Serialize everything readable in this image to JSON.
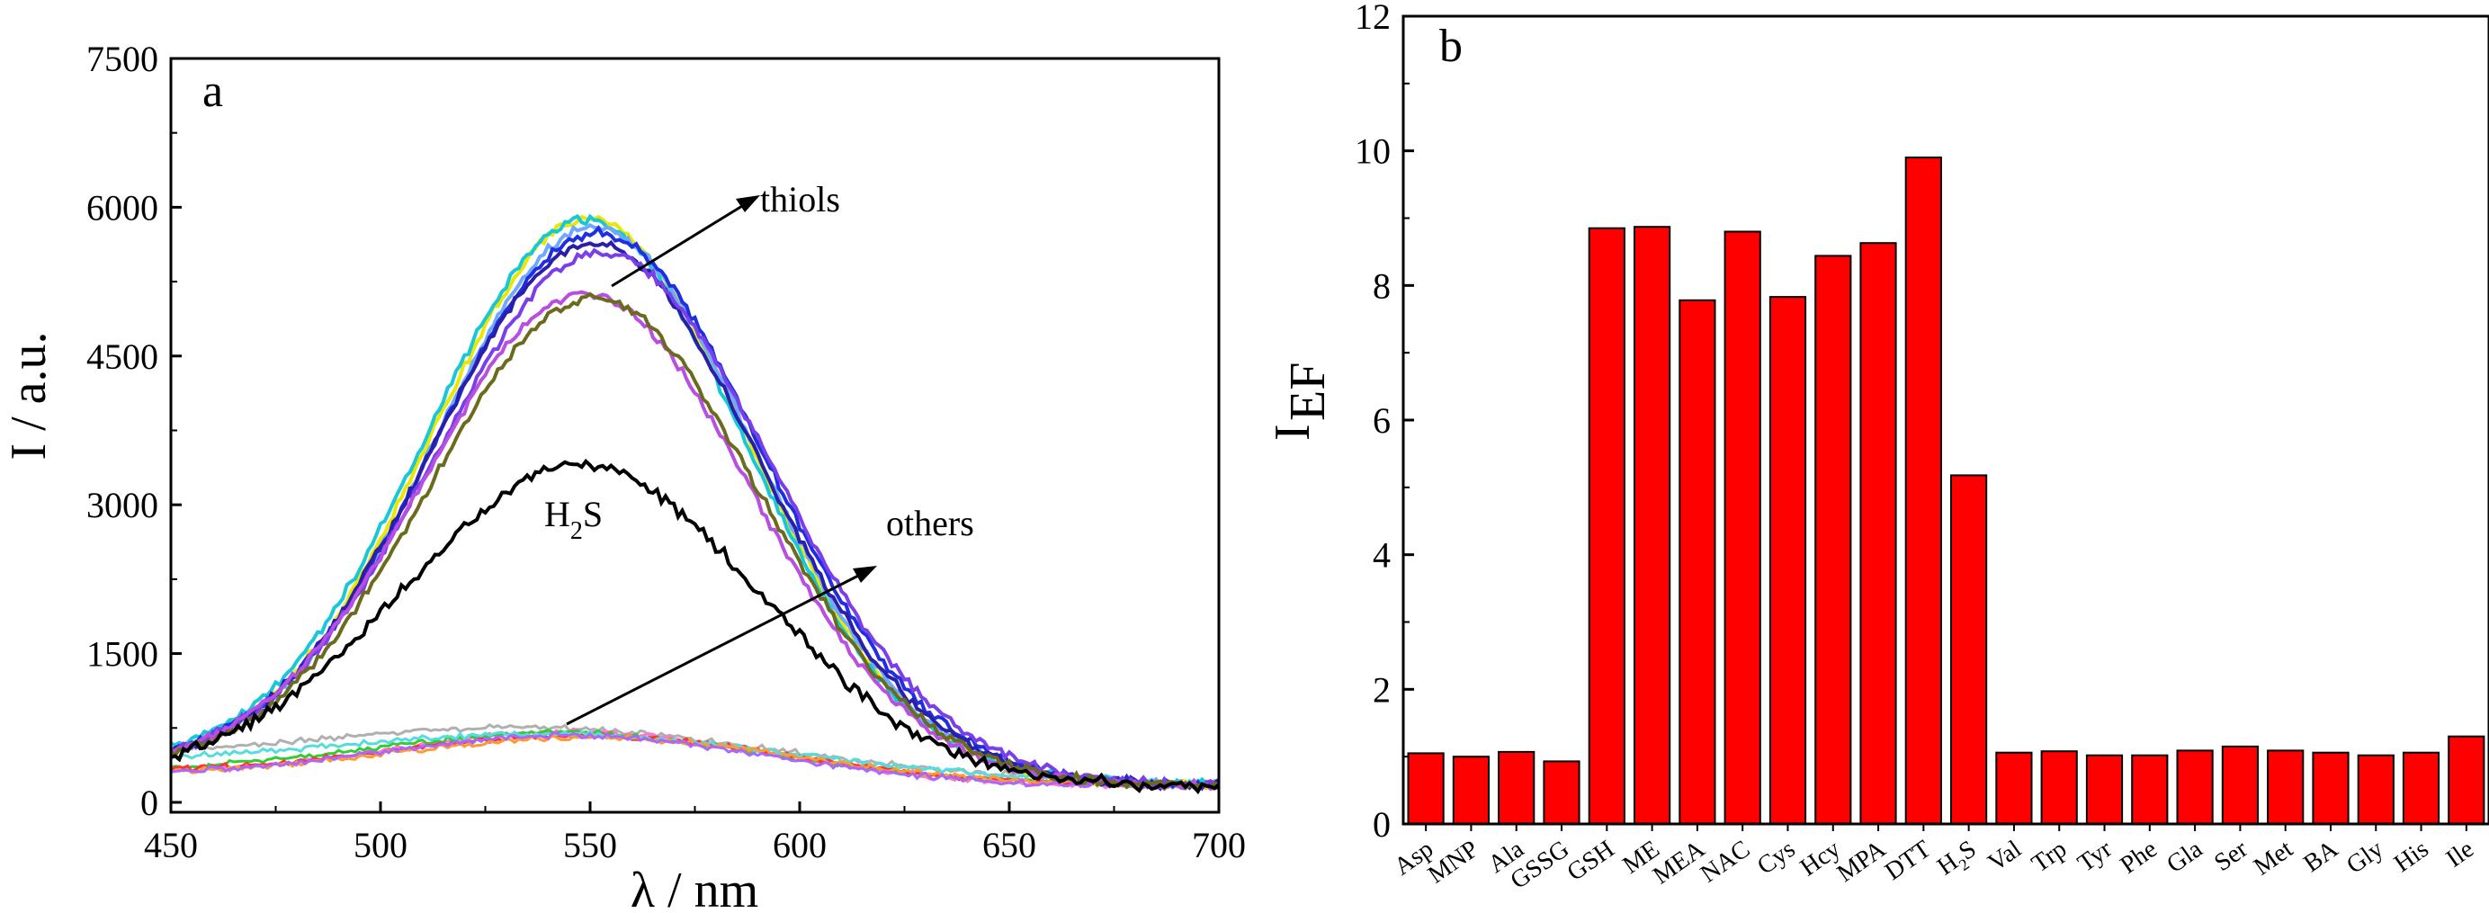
{
  "chart_data": [
    {
      "type": "line",
      "panel_label": "a",
      "xlabel": "λ / nm",
      "ylabel": "I / a.u.",
      "xlim": [
        450,
        700
      ],
      "ylim": [
        -100,
        7500
      ],
      "x_ticks": [
        450,
        500,
        550,
        600,
        650,
        700
      ],
      "y_ticks": [
        0,
        1500,
        3000,
        4500,
        6000,
        7500
      ],
      "annotations": {
        "thiols": "thiols",
        "others": "others",
        "h2s_main": "H",
        "h2s_sub": "2",
        "h2s_end": "S"
      },
      "series": [
        {
          "name": "thiol-yellow",
          "color": "#e8e800",
          "amp": 5650,
          "center": 550,
          "width": 38,
          "base": 200
        },
        {
          "name": "thiol-cyan",
          "color": "#19c8d8",
          "amp": 5600,
          "center": 549,
          "width": 38,
          "base": 260
        },
        {
          "name": "thiol-lightblue",
          "color": "#6fa8ff",
          "amp": 5550,
          "center": 551,
          "width": 38,
          "base": 230
        },
        {
          "name": "thiol-blue",
          "color": "#1f2fe0",
          "amp": 5500,
          "center": 552,
          "width": 39,
          "base": 220
        },
        {
          "name": "thiol-navy",
          "color": "#2a1fa8",
          "amp": 5400,
          "center": 551,
          "width": 39,
          "base": 200
        },
        {
          "name": "thiol-violet",
          "color": "#7a3fe8",
          "amp": 5300,
          "center": 553,
          "width": 40,
          "base": 210
        },
        {
          "name": "thiol-magenta",
          "color": "#b84fe0",
          "amp": 4900,
          "center": 549,
          "width": 39,
          "base": 190
        },
        {
          "name": "thiol-olive",
          "color": "#6b6b1e",
          "amp": 4850,
          "center": 551,
          "width": 39,
          "base": 200
        },
        {
          "name": "H2S",
          "color": "#000000",
          "amp": 3200,
          "center": 548,
          "width": 42,
          "base": 150
        },
        {
          "name": "other-gray",
          "color": "#b0b0b0",
          "amp": 450,
          "center": 540,
          "width": 55,
          "base": 300
        },
        {
          "name": "other-pink",
          "color": "#ff77cc",
          "amp": 500,
          "center": 548,
          "width": 45,
          "base": 150
        },
        {
          "name": "other-green",
          "color": "#33cc33",
          "amp": 480,
          "center": 545,
          "width": 48,
          "base": 170
        },
        {
          "name": "other-red",
          "color": "#ff3333",
          "amp": 460,
          "center": 550,
          "width": 48,
          "base": 160
        },
        {
          "name": "other-cyan",
          "color": "#55dddd",
          "amp": 420,
          "center": 545,
          "width": 55,
          "base": 250
        },
        {
          "name": "other-orange",
          "color": "#ff9933",
          "amp": 450,
          "center": 552,
          "width": 48,
          "base": 150
        },
        {
          "name": "other-purple",
          "color": "#aa66ff",
          "amp": 470,
          "center": 547,
          "width": 46,
          "base": 140
        }
      ]
    },
    {
      "type": "bar",
      "panel_label": "b",
      "ylabel_main": "I",
      "ylabel_sub": "EF",
      "ylim": [
        0,
        12
      ],
      "y_ticks": [
        0,
        2,
        4,
        6,
        8,
        10,
        12
      ],
      "bar_color": "#ff0000",
      "categories": [
        "Asp",
        "MNP",
        "Ala",
        "GSSG",
        "GSH",
        "ME",
        "MEA",
        "NAC",
        "Cys",
        "Hcy",
        "MPA",
        "DTT",
        "H2S",
        "Val",
        "Trp",
        "Tyr",
        "Phe",
        "Gla",
        "Ser",
        "Met",
        "BA",
        "Gly",
        "His",
        "Ile"
      ],
      "values": [
        1.05,
        1.0,
        1.07,
        0.93,
        8.85,
        8.87,
        7.78,
        8.8,
        7.83,
        8.44,
        8.63,
        9.9,
        5.18,
        1.06,
        1.08,
        1.02,
        1.02,
        1.09,
        1.15,
        1.09,
        1.06,
        1.02,
        1.06,
        1.3
      ]
    }
  ]
}
